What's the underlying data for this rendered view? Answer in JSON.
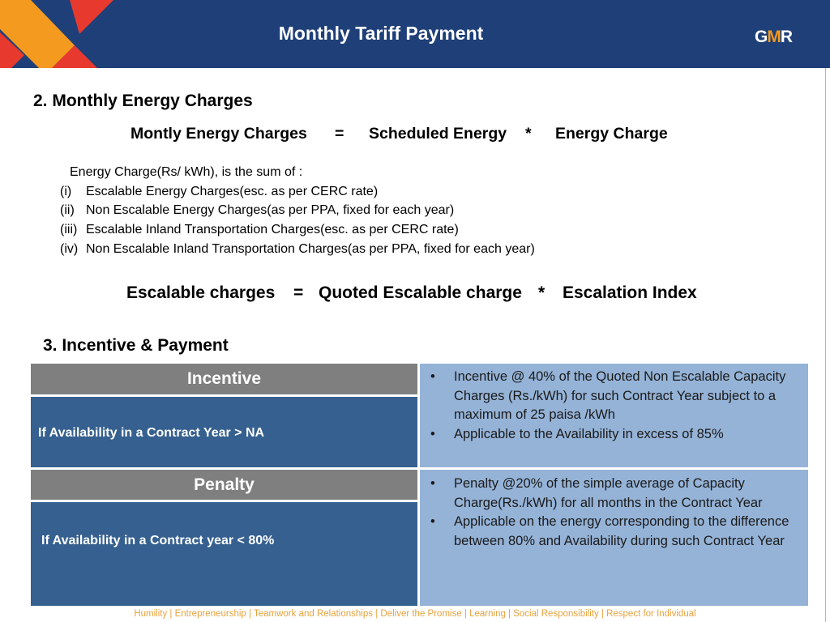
{
  "header": {
    "title": "Monthly Tariff Payment",
    "logo_left": "G",
    "logo_mid": "M",
    "logo_right": "R"
  },
  "section2": {
    "heading": "2. Monthly Energy Charges",
    "formula1": {
      "lhs": "Montly Energy Charges",
      "eq": "=",
      "term1": "Scheduled Energy",
      "op": "*",
      "term2": "Energy Charge"
    },
    "intro": "Energy Charge(Rs/ kWh), is the sum of :",
    "items": [
      {
        "num": "(i)",
        "text": "Escalable Energy Charges(esc. as per CERC rate)"
      },
      {
        "num": "(ii)",
        "text": "Non Escalable Energy Charges(as per PPA, fixed for each year)"
      },
      {
        "num": "(iii)",
        "text": "Escalable Inland Transportation Charges(esc. as per CERC rate)"
      },
      {
        "num": "(iv)",
        "text": "Non Escalable Inland Transportation Charges(as per PPA, fixed for each year)"
      }
    ],
    "formula2": {
      "lhs": "Escalable charges",
      "eq": "=",
      "term1": "Quoted Escalable charge",
      "op": "*",
      "term2": "Escalation Index"
    }
  },
  "section3": {
    "heading": "3. Incentive & Payment",
    "incentive": {
      "title": "Incentive",
      "condition": "If Availability in a Contract Year > NA",
      "bullets": [
        "Incentive @ 40% of the Quoted Non Escalable Capacity Charges (Rs./kWh) for such Contract Year subject to a maximum of 25 paisa /kWh",
        "Applicable to the Availability in excess of 85%"
      ]
    },
    "penalty": {
      "title": "Penalty",
      "condition": "If Availability in a Contract year < 80%",
      "bullets": [
        "Penalty @20% of the simple average of Capacity Charge(Rs./kWh) for all months in the Contract Year",
        "Applicable on the energy corresponding to the difference between 80%  and Availability during such Contract Year"
      ]
    }
  },
  "footer": {
    "values": "Humility | Entrepreneurship | Teamwork and Relationships | Deliver the Promise | Learning | Social Responsibility | Respect for Individual"
  },
  "colors": {
    "header_bg": "#1e3f78",
    "cell_gray": "#7f7f7f",
    "cell_blue": "#35608f",
    "cell_light": "#95b3d7",
    "footer_text": "#e7a23c",
    "accent_orange": "#f39a1f",
    "accent_red": "#e8392f"
  }
}
